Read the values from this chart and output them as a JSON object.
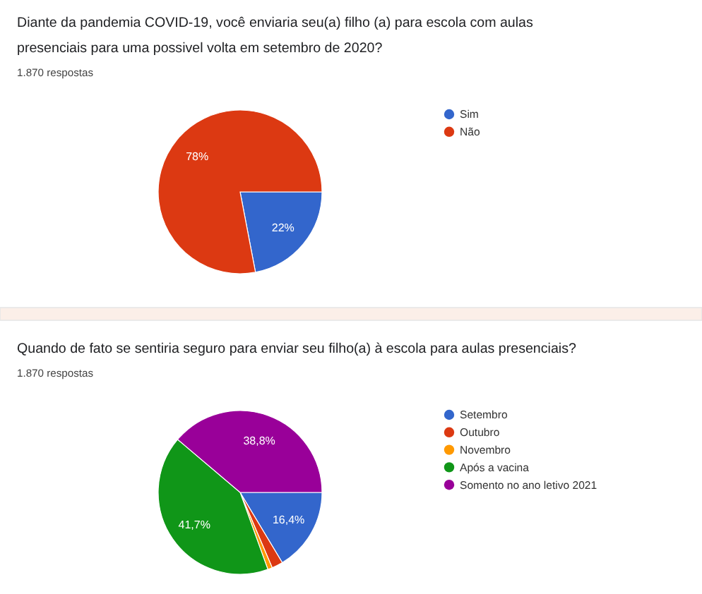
{
  "chart_data": [
    {
      "type": "pie",
      "title": "Diante da pandemia COVID-19, você enviaria seu(a) filho (a) para escola com aulas presenciais para uma possivel volta em setembro de 2020?",
      "subtitle": "1.870 respostas",
      "categories": [
        "Sim",
        "Não"
      ],
      "values": [
        22,
        78
      ],
      "colors": [
        "#3366cc",
        "#dc3912"
      ],
      "value_labels": [
        "22%",
        "78%"
      ],
      "legend": "top right"
    },
    {
      "type": "pie",
      "title": "Quando de fato se sentiria seguro para enviar seu filho(a) à escola para aulas presenciais?",
      "subtitle": "1.870 respostas",
      "categories": [
        "Setembro",
        "Outubro",
        "Novembro",
        "Após a vacina",
        "Somento no ano letivo 2021"
      ],
      "values": [
        16.4,
        2.2,
        0.9,
        41.7,
        38.8
      ],
      "colors": [
        "#3366cc",
        "#dc3912",
        "#ff9900",
        "#109618",
        "#990099"
      ],
      "value_labels": [
        "16,4%",
        null,
        null,
        "41,7%",
        "38,8%"
      ],
      "legend": "top right"
    }
  ]
}
